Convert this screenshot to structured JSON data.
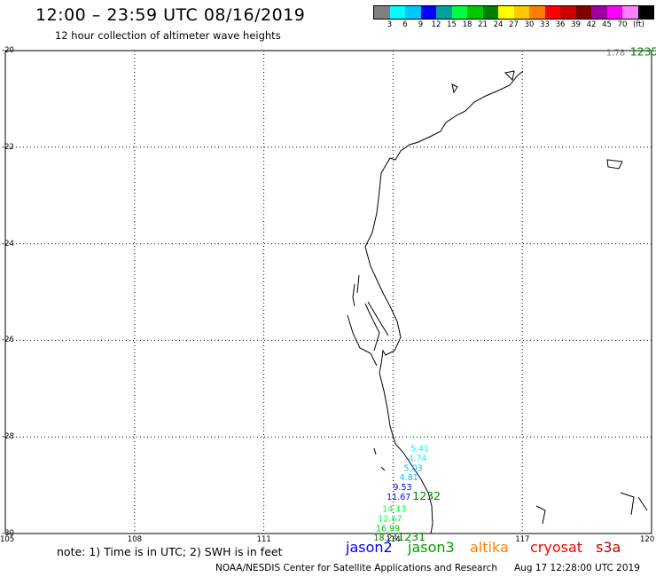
{
  "header": {
    "title": "12:00 – 23:59 UTC 08/16/2019",
    "subtitle": "12 hour collection of altimeter wave heights"
  },
  "legend": {
    "unit": "(ft)",
    "colors": [
      "#808080",
      "#00ffff",
      "#00c8ff",
      "#0000ff",
      "#00a0a0",
      "#00ff40",
      "#00c800",
      "#008000",
      "#ffff00",
      "#ffc800",
      "#ff8000",
      "#ff0000",
      "#c80000",
      "#800000",
      "#a000a0",
      "#ff00ff",
      "#ff80ff",
      "#000000"
    ],
    "ticks": [
      "3",
      "6",
      "9",
      "12",
      "15",
      "18",
      "21",
      "24",
      "27",
      "30",
      "33",
      "36",
      "39",
      "42",
      "45",
      "70"
    ]
  },
  "map": {
    "lat_labels": [
      "-20",
      "-22",
      "-24",
      "-26",
      "-28",
      "-30"
    ],
    "lon_labels": [
      "105",
      "108",
      "111",
      "114",
      "117",
      "120"
    ],
    "lat_range": [
      -30,
      -20
    ],
    "lon_range": [
      105,
      120
    ],
    "grid": true
  },
  "observations": [
    {
      "value": "1.78",
      "color": "#808080",
      "lon": 118.95,
      "lat": -20.1
    },
    {
      "value": "5.41",
      "color": "#00ffff",
      "lon": 114.4,
      "lat": -28.3
    },
    {
      "value": "4.74",
      "color": "#00ffff",
      "lon": 114.35,
      "lat": -28.5
    },
    {
      "value": "5.03",
      "color": "#00c8ff",
      "lon": 114.25,
      "lat": -28.7
    },
    {
      "value": "4.81",
      "color": "#00c8ff",
      "lon": 114.15,
      "lat": -28.9
    },
    {
      "value": "9.53",
      "color": "#0000ff",
      "lon": 114.0,
      "lat": -29.1
    },
    {
      "value": "11.67",
      "color": "#0000ff",
      "lon": 113.85,
      "lat": -29.3
    },
    {
      "value": "14.13",
      "color": "#00ff40",
      "lon": 113.75,
      "lat": -29.55
    },
    {
      "value": "12.67",
      "color": "#00ff40",
      "lon": 113.65,
      "lat": -29.75
    },
    {
      "value": "16.99",
      "color": "#00c800",
      "lon": 113.6,
      "lat": -29.95
    },
    {
      "value": "18.24",
      "color": "#008000",
      "lon": 113.55,
      "lat": -30.15
    }
  ],
  "times": [
    {
      "label": "1235",
      "color": "#008000",
      "lon": 119.5,
      "lat": -20.1
    },
    {
      "label": "1232",
      "color": "#008000",
      "lon": 114.45,
      "lat": -29.3
    },
    {
      "label": "1231",
      "color": "#008000",
      "lon": 114.1,
      "lat": -30.15
    }
  ],
  "footer": {
    "note": "note: 1) Time is in UTC; 2) SWH is in feet",
    "credit": "NOAA/NESDIS Center for Satellite Applications and Research",
    "timestamp": "Aug 17 12:28:00 UTC 2019"
  },
  "satellites": [
    {
      "name": "jason2",
      "color": "#0000ff"
    },
    {
      "name": "jason3",
      "color": "#00a000"
    },
    {
      "name": "altika",
      "color": "#ff8000"
    },
    {
      "name": "cryosat",
      "color": "#ff0000"
    },
    {
      "name": "s3a",
      "color": "#c00000"
    }
  ]
}
